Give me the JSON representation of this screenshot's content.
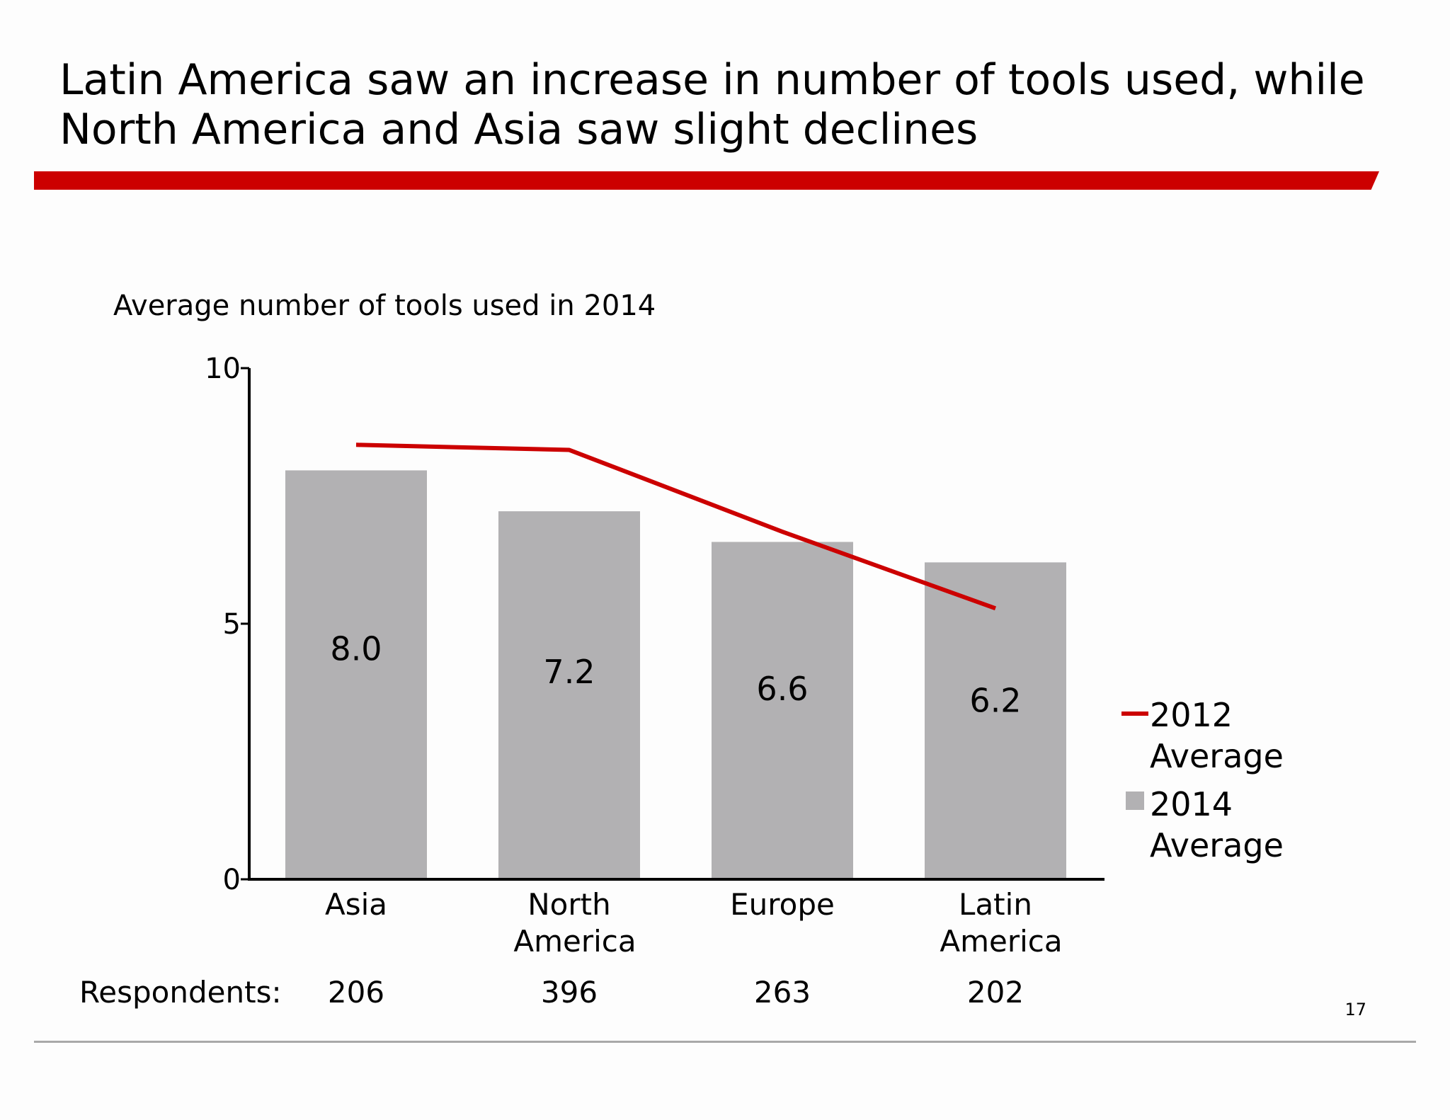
{
  "slide": {
    "title_line1": "Latin America saw an increase in number of tools used, while",
    "title_line2": "North America and Asia saw slight declines",
    "page_number": "17"
  },
  "colors": {
    "accent_red": "#cc0000",
    "bar_gray": "#b2b1b3",
    "divider_gray": "#a9a9a9"
  },
  "chart_data": {
    "type": "bar",
    "title": "Average number of tools used in 2014",
    "categories": [
      "Asia",
      "North America",
      "Europe",
      "Latin America"
    ],
    "category_lines": [
      [
        "Asia"
      ],
      [
        "North",
        "America"
      ],
      [
        "Europe"
      ],
      [
        "Latin",
        "America"
      ]
    ],
    "series": [
      {
        "name": "2014 Average",
        "kind": "bar",
        "color": "#b2b1b3",
        "values": [
          8.0,
          7.2,
          6.6,
          6.2
        ],
        "value_labels": [
          "8.0",
          "7.2",
          "6.6",
          "6.2"
        ]
      },
      {
        "name": "2012 Average",
        "kind": "line",
        "color": "#cc0000",
        "values": [
          8.5,
          8.4,
          6.8,
          5.3
        ]
      }
    ],
    "ylim": [
      0,
      10
    ],
    "yticks": [
      0,
      5,
      10
    ],
    "ytick_labels": [
      "0",
      "5",
      "10"
    ],
    "grid": false,
    "legend": {
      "placement": "right",
      "entries": [
        {
          "line1": "2012",
          "line2": "Average",
          "kind": "line",
          "color": "#cc0000"
        },
        {
          "line1": "2014",
          "line2": "Average",
          "kind": "bar",
          "color": "#b2b1b3"
        }
      ]
    },
    "respondents": {
      "label": "Respondents:",
      "values": [
        "206",
        "396",
        "263",
        "202"
      ]
    }
  }
}
